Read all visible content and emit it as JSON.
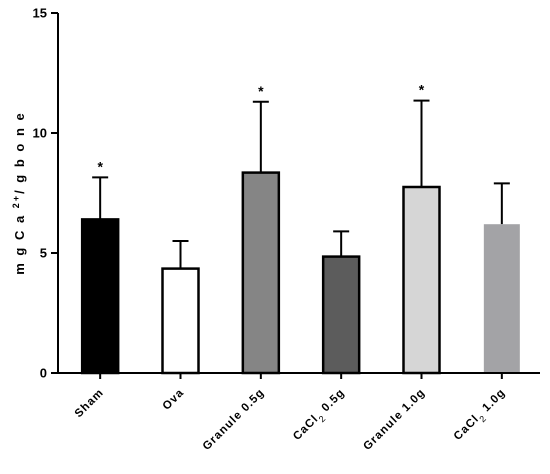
{
  "chart_data": {
    "type": "bar",
    "categories": [
      "Sham",
      "Ova",
      "Granule 0.5g",
      "CaCl2 0.5g",
      "Granule 1.0g",
      "CaCl2 1.0g"
    ],
    "category_labels": [
      {
        "parts": [
          {
            "t": "Sham"
          }
        ]
      },
      {
        "parts": [
          {
            "t": "Ova"
          }
        ]
      },
      {
        "parts": [
          {
            "t": "Granule 0.5g"
          }
        ]
      },
      {
        "parts": [
          {
            "t": "CaCl"
          },
          {
            "t": "2",
            "sub": true
          },
          {
            "t": " 0.5g"
          }
        ]
      },
      {
        "parts": [
          {
            "t": "Granule 1.0g"
          }
        ]
      },
      {
        "parts": [
          {
            "t": "CaCl"
          },
          {
            "t": "2",
            "sub": true
          },
          {
            "t": " 1.0g"
          }
        ]
      }
    ],
    "values": [
      6.4,
      4.35,
      8.35,
      4.85,
      7.75,
      6.2
    ],
    "error_upper": [
      8.15,
      5.5,
      11.3,
      5.9,
      11.35,
      7.9
    ],
    "significance": [
      "*",
      "",
      "*",
      "",
      "*",
      ""
    ],
    "bar_colors": [
      "#000000",
      "#ffffff",
      "#858585",
      "#5c5c5c",
      "#d6d6d6",
      "#a3a3a6"
    ],
    "ylabel": "m g  C a  2+/ g  b o n e",
    "ylim": [
      0,
      15
    ],
    "yticks": [
      0,
      5,
      10,
      15
    ],
    "grid": false
  }
}
